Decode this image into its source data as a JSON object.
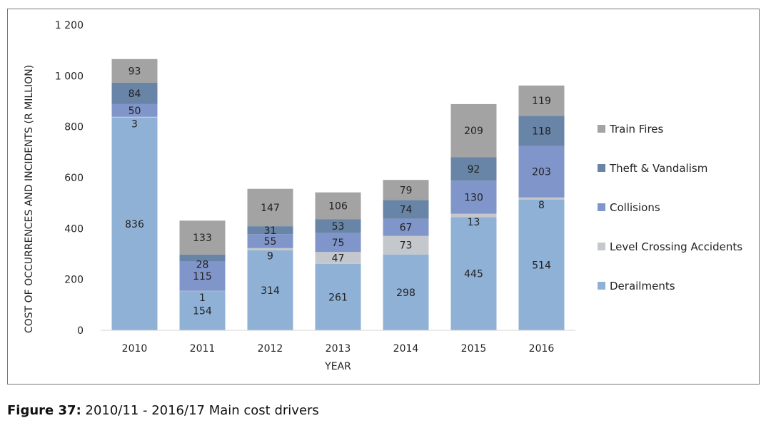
{
  "caption": {
    "label": "Figure 37:",
    "text": " 2010/11 - 2016/17 Main cost drivers"
  },
  "chart_data": {
    "type": "bar",
    "stacked": true,
    "categories": [
      "2010",
      "2011",
      "2012",
      "2013",
      "2014",
      "2015",
      "2016"
    ],
    "xlabel": "YEAR",
    "ylabel": "COST OF OCCURRENCES AND INCIDENTS (R MILLION)",
    "ylim": [
      0,
      1200
    ],
    "yticks": [
      0,
      200,
      400,
      600,
      800,
      1000,
      1200
    ],
    "ytick_labels": [
      "0",
      "200",
      "400",
      "600",
      "800",
      "1 000",
      "1 200"
    ],
    "grid": false,
    "legend_position": "right",
    "series": [
      {
        "name": "Derailments",
        "color": "#8fb1d6",
        "values": [
          836,
          154,
          314,
          261,
          298,
          445,
          514
        ]
      },
      {
        "name": "Level Crossing Accidents",
        "color": "#c4c7cb",
        "values": [
          3,
          1,
          9,
          47,
          73,
          13,
          8
        ]
      },
      {
        "name": "Collisions",
        "color": "#8095c9",
        "values": [
          50,
          115,
          55,
          75,
          67,
          130,
          203
        ]
      },
      {
        "name": "Theft & Vandalism",
        "color": "#6884a6",
        "values": [
          84,
          28,
          31,
          53,
          74,
          92,
          118
        ]
      },
      {
        "name": "Train Fires",
        "color": "#a3a3a3",
        "values": [
          93,
          133,
          147,
          106,
          79,
          209,
          119
        ]
      }
    ]
  }
}
